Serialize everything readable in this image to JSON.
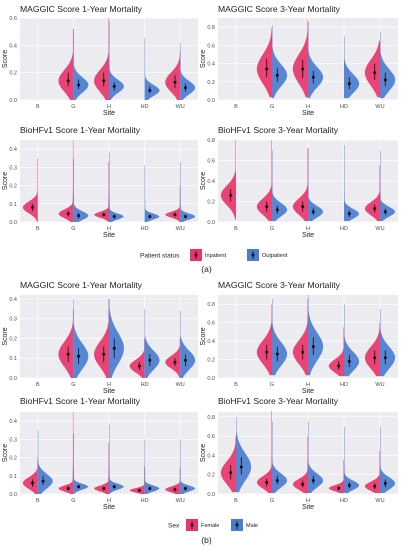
{
  "colors": {
    "panel_bg": "#EBEBF0",
    "grid": "#ffffff",
    "pink": "#E8356B",
    "blue": "#4A7DD1",
    "text": "#222222",
    "axis_text": "#4d4d4d"
  },
  "sections": [
    {
      "label": "(a)",
      "legend": {
        "title": "Patient status",
        "items": [
          {
            "label": "Inpatient",
            "color": "#E8356B"
          },
          {
            "label": "Outpatient",
            "color": "#4A7DD1"
          }
        ]
      },
      "charts": [
        {
          "title": "MAGGIC Score 1-Year Mortality",
          "xlabel": "Site",
          "ylabel": "Score"
        },
        {
          "title": "MAGGIC Score 3-Year Mortality",
          "xlabel": "Site",
          "ylabel": "Score"
        },
        {
          "title": "BioHFv1 Score 1-Year Mortality",
          "xlabel": "Site",
          "ylabel": "Score"
        },
        {
          "title": "BioHFv1 Score 3-Year Mortality",
          "xlabel": "Site",
          "ylabel": "Score"
        }
      ]
    },
    {
      "label": "(b)",
      "legend": {
        "title": "Sex",
        "items": [
          {
            "label": "Female",
            "color": "#E8356B"
          },
          {
            "label": "Male",
            "color": "#4A7DD1"
          }
        ]
      },
      "charts": [
        {
          "title": "MAGGIC Score 1-Year Mortality",
          "xlabel": "Site",
          "ylabel": "Score"
        },
        {
          "title": "MAGGIC Score 3-Year Mortality",
          "xlabel": "Site",
          "ylabel": "Score"
        },
        {
          "title": "BioHFv1 Score 1-Year Mortality",
          "xlabel": "Site",
          "ylabel": "Score"
        },
        {
          "title": "BioHFv1 Score 3-Year Mortality",
          "xlabel": "Site",
          "ylabel": "Score"
        }
      ]
    }
  ],
  "chart_data": [
    {
      "type": "violin",
      "title": "MAGGIC Score 1-Year Mortality",
      "xlabel": "Site",
      "ylabel": "Score",
      "categories": [
        "B",
        "G",
        "H",
        "HD",
        "WU"
      ],
      "ylim": [
        0,
        0.6
      ],
      "yticks": [
        0.0,
        0.2,
        0.4,
        0.6
      ],
      "series": [
        {
          "name": "Inpatient",
          "points": [
            null,
            {
              "median": 0.14,
              "lo": 0.1,
              "hi": 0.2,
              "max": 0.52,
              "min": 0.0
            },
            {
              "median": 0.14,
              "lo": 0.1,
              "hi": 0.2,
              "max": 0.6,
              "min": 0.0
            },
            null,
            {
              "median": 0.13,
              "lo": 0.09,
              "hi": 0.18,
              "max": 0.36,
              "min": 0.0
            }
          ]
        },
        {
          "name": "Outpatient",
          "points": [
            null,
            {
              "median": 0.11,
              "lo": 0.08,
              "hi": 0.15,
              "max": 0.52,
              "min": 0.0
            },
            {
              "median": 0.1,
              "lo": 0.07,
              "hi": 0.13,
              "max": 0.58,
              "min": 0.0
            },
            {
              "median": 0.07,
              "lo": 0.05,
              "hi": 0.1,
              "max": 0.45,
              "min": 0.0
            },
            {
              "median": 0.09,
              "lo": 0.06,
              "hi": 0.12,
              "max": 0.42,
              "min": 0.0
            }
          ]
        }
      ]
    },
    {
      "type": "violin",
      "title": "MAGGIC Score 3-Year Mortality",
      "xlabel": "Site",
      "ylabel": "Score",
      "categories": [
        "B",
        "G",
        "H",
        "HD",
        "WU"
      ],
      "ylim": [
        0,
        0.9
      ],
      "yticks": [
        0.0,
        0.2,
        0.4,
        0.6,
        0.8
      ],
      "series": [
        {
          "name": "Inpatient",
          "points": [
            null,
            {
              "median": 0.34,
              "lo": 0.25,
              "hi": 0.45,
              "max": 0.8,
              "min": 0.03
            },
            {
              "median": 0.34,
              "lo": 0.24,
              "hi": 0.44,
              "max": 0.88,
              "min": 0.03
            },
            null,
            {
              "median": 0.3,
              "lo": 0.22,
              "hi": 0.4,
              "max": 0.65,
              "min": 0.03
            }
          ]
        },
        {
          "name": "Outpatient",
          "points": [
            null,
            {
              "median": 0.27,
              "lo": 0.2,
              "hi": 0.35,
              "max": 0.82,
              "min": 0.02
            },
            {
              "median": 0.25,
              "lo": 0.18,
              "hi": 0.32,
              "max": 0.86,
              "min": 0.02
            },
            {
              "median": 0.18,
              "lo": 0.12,
              "hi": 0.25,
              "max": 0.7,
              "min": 0.02
            },
            {
              "median": 0.22,
              "lo": 0.15,
              "hi": 0.3,
              "max": 0.75,
              "min": 0.02
            }
          ]
        }
      ]
    },
    {
      "type": "violin",
      "title": "BioHFv1 Score 1-Year Mortality",
      "xlabel": "Site",
      "ylabel": "Score",
      "categories": [
        "B",
        "G",
        "H",
        "HD",
        "WU"
      ],
      "ylim": [
        0,
        0.45
      ],
      "yticks": [
        0.0,
        0.1,
        0.2,
        0.3,
        0.4
      ],
      "series": [
        {
          "name": "Inpatient",
          "points": [
            {
              "median": 0.08,
              "lo": 0.06,
              "hi": 0.1,
              "max": 0.35,
              "min": 0.0
            },
            {
              "median": 0.045,
              "lo": 0.03,
              "hi": 0.06,
              "max": 0.45,
              "min": 0.0
            },
            {
              "median": 0.04,
              "lo": 0.03,
              "hi": 0.05,
              "max": 0.33,
              "min": 0.0
            },
            null,
            {
              "median": 0.04,
              "lo": 0.03,
              "hi": 0.05,
              "max": 0.2,
              "min": 0.0
            }
          ]
        },
        {
          "name": "Outpatient",
          "points": [
            null,
            {
              "median": 0.035,
              "lo": 0.02,
              "hi": 0.05,
              "max": 0.35,
              "min": 0.0
            },
            {
              "median": 0.03,
              "lo": 0.02,
              "hi": 0.04,
              "max": 0.38,
              "min": 0.0
            },
            {
              "median": 0.03,
              "lo": 0.02,
              "hi": 0.04,
              "max": 0.31,
              "min": 0.0
            },
            {
              "median": 0.03,
              "lo": 0.02,
              "hi": 0.04,
              "max": 0.33,
              "min": 0.0
            }
          ]
        }
      ]
    },
    {
      "type": "violin",
      "title": "BioHFv1 Score 3-Year Mortality",
      "xlabel": "Site",
      "ylabel": "Score",
      "categories": [
        "B",
        "G",
        "H",
        "HD",
        "WU"
      ],
      "ylim": [
        0,
        0.8
      ],
      "yticks": [
        0.0,
        0.2,
        0.4,
        0.6,
        0.8
      ],
      "series": [
        {
          "name": "Inpatient",
          "points": [
            {
              "median": 0.26,
              "lo": 0.2,
              "hi": 0.32,
              "max": 0.8,
              "min": 0.02
            },
            {
              "median": 0.15,
              "lo": 0.1,
              "hi": 0.2,
              "max": 0.8,
              "min": 0.01
            },
            {
              "median": 0.15,
              "lo": 0.1,
              "hi": 0.2,
              "max": 0.72,
              "min": 0.01
            },
            null,
            {
              "median": 0.13,
              "lo": 0.09,
              "hi": 0.17,
              "max": 0.55,
              "min": 0.01
            }
          ]
        },
        {
          "name": "Outpatient",
          "points": [
            null,
            {
              "median": 0.12,
              "lo": 0.08,
              "hi": 0.16,
              "max": 0.7,
              "min": 0.01
            },
            {
              "median": 0.1,
              "lo": 0.07,
              "hi": 0.14,
              "max": 0.72,
              "min": 0.01
            },
            {
              "median": 0.08,
              "lo": 0.05,
              "hi": 0.11,
              "max": 0.75,
              "min": 0.01
            },
            {
              "median": 0.1,
              "lo": 0.07,
              "hi": 0.13,
              "max": 0.7,
              "min": 0.01
            }
          ]
        }
      ]
    },
    {
      "type": "violin",
      "title": "MAGGIC Score 1-Year Mortality",
      "xlabel": "Site",
      "ylabel": "Score",
      "categories": [
        "B",
        "G",
        "H",
        "HD",
        "WU"
      ],
      "ylim": [
        0,
        0.42
      ],
      "yticks": [
        0.0,
        0.1,
        0.2,
        0.3,
        0.4
      ],
      "series": [
        {
          "name": "Female",
          "points": [
            null,
            {
              "median": 0.12,
              "lo": 0.08,
              "hi": 0.16,
              "max": 0.35,
              "min": 0.0
            },
            {
              "median": 0.12,
              "lo": 0.08,
              "hi": 0.16,
              "max": 0.4,
              "min": 0.0
            },
            {
              "median": 0.06,
              "lo": 0.04,
              "hi": 0.08,
              "max": 0.2,
              "min": 0.0
            },
            {
              "median": 0.08,
              "lo": 0.06,
              "hi": 0.1,
              "max": 0.2,
              "min": 0.0
            }
          ]
        },
        {
          "name": "Male",
          "points": [
            null,
            {
              "median": 0.11,
              "lo": 0.07,
              "hi": 0.15,
              "max": 0.4,
              "min": 0.0
            },
            {
              "median": 0.15,
              "lo": 0.1,
              "hi": 0.2,
              "max": 0.4,
              "min": 0.0
            },
            {
              "median": 0.09,
              "lo": 0.06,
              "hi": 0.12,
              "max": 0.35,
              "min": 0.0
            },
            {
              "median": 0.09,
              "lo": 0.06,
              "hi": 0.12,
              "max": 0.34,
              "min": 0.0
            }
          ]
        }
      ]
    },
    {
      "type": "violin",
      "title": "MAGGIC Score 3-Year Mortality",
      "xlabel": "Site",
      "ylabel": "Score",
      "categories": [
        "B",
        "G",
        "H",
        "HD",
        "WU"
      ],
      "ylim": [
        0,
        0.9
      ],
      "yticks": [
        0.0,
        0.2,
        0.4,
        0.6,
        0.8
      ],
      "series": [
        {
          "name": "Female",
          "points": [
            null,
            {
              "median": 0.28,
              "lo": 0.2,
              "hi": 0.36,
              "max": 0.8,
              "min": 0.03
            },
            {
              "median": 0.28,
              "lo": 0.2,
              "hi": 0.36,
              "max": 0.86,
              "min": 0.03
            },
            {
              "median": 0.13,
              "lo": 0.09,
              "hi": 0.18,
              "max": 0.55,
              "min": 0.02
            },
            {
              "median": 0.22,
              "lo": 0.15,
              "hi": 0.3,
              "max": 0.6,
              "min": 0.02
            }
          ]
        },
        {
          "name": "Male",
          "points": [
            null,
            {
              "median": 0.26,
              "lo": 0.18,
              "hi": 0.34,
              "max": 0.86,
              "min": 0.03
            },
            {
              "median": 0.34,
              "lo": 0.25,
              "hi": 0.44,
              "max": 0.9,
              "min": 0.03
            },
            {
              "median": 0.18,
              "lo": 0.12,
              "hi": 0.25,
              "max": 0.8,
              "min": 0.02
            },
            {
              "median": 0.22,
              "lo": 0.15,
              "hi": 0.3,
              "max": 0.75,
              "min": 0.02
            }
          ]
        }
      ]
    },
    {
      "type": "violin",
      "title": "BioHFv1 Score 1-Year Mortality",
      "xlabel": "Site",
      "ylabel": "Score",
      "categories": [
        "B",
        "G",
        "H",
        "HD",
        "WU"
      ],
      "ylim": [
        0,
        0.45
      ],
      "yticks": [
        0.0,
        0.1,
        0.2,
        0.3,
        0.4
      ],
      "series": [
        {
          "name": "Female",
          "points": [
            {
              "median": 0.06,
              "lo": 0.04,
              "hi": 0.08,
              "max": 0.2,
              "min": 0.0
            },
            {
              "median": 0.03,
              "lo": 0.02,
              "hi": 0.04,
              "max": 0.45,
              "min": 0.0
            },
            {
              "median": 0.03,
              "lo": 0.02,
              "hi": 0.04,
              "max": 0.28,
              "min": 0.0
            },
            {
              "median": 0.02,
              "lo": 0.015,
              "hi": 0.03,
              "max": 0.15,
              "min": 0.0
            },
            {
              "median": 0.025,
              "lo": 0.015,
              "hi": 0.035,
              "max": 0.15,
              "min": 0.0
            }
          ]
        },
        {
          "name": "Male",
          "points": [
            {
              "median": 0.07,
              "lo": 0.05,
              "hi": 0.1,
              "max": 0.35,
              "min": 0.0
            },
            {
              "median": 0.04,
              "lo": 0.03,
              "hi": 0.05,
              "max": 0.33,
              "min": 0.0
            },
            {
              "median": 0.04,
              "lo": 0.03,
              "hi": 0.05,
              "max": 0.38,
              "min": 0.0
            },
            {
              "median": 0.03,
              "lo": 0.02,
              "hi": 0.04,
              "max": 0.3,
              "min": 0.0
            },
            {
              "median": 0.03,
              "lo": 0.02,
              "hi": 0.04,
              "max": 0.3,
              "min": 0.0
            }
          ]
        }
      ]
    },
    {
      "type": "violin",
      "title": "BioHFv1 Score 3-Year Mortality",
      "xlabel": "Site",
      "ylabel": "Score",
      "categories": [
        "B",
        "G",
        "H",
        "HD",
        "WU"
      ],
      "ylim": [
        0,
        0.85
      ],
      "yticks": [
        0.0,
        0.2,
        0.4,
        0.6,
        0.8
      ],
      "series": [
        {
          "name": "Female",
          "points": [
            {
              "median": 0.22,
              "lo": 0.15,
              "hi": 0.3,
              "max": 0.6,
              "min": 0.02
            },
            {
              "median": 0.12,
              "lo": 0.08,
              "hi": 0.16,
              "max": 0.86,
              "min": 0.01
            },
            {
              "median": 0.1,
              "lo": 0.07,
              "hi": 0.14,
              "max": 0.6,
              "min": 0.01
            },
            {
              "median": 0.06,
              "lo": 0.04,
              "hi": 0.08,
              "max": 0.35,
              "min": 0.01
            },
            {
              "median": 0.08,
              "lo": 0.05,
              "hi": 0.11,
              "max": 0.45,
              "min": 0.01
            }
          ]
        },
        {
          "name": "Male",
          "points": [
            {
              "median": 0.28,
              "lo": 0.2,
              "hi": 0.38,
              "max": 0.8,
              "min": 0.02
            },
            {
              "median": 0.14,
              "lo": 0.1,
              "hi": 0.19,
              "max": 0.75,
              "min": 0.01
            },
            {
              "median": 0.14,
              "lo": 0.1,
              "hi": 0.19,
              "max": 0.75,
              "min": 0.01
            },
            {
              "median": 0.09,
              "lo": 0.06,
              "hi": 0.12,
              "max": 0.7,
              "min": 0.01
            },
            {
              "median": 0.11,
              "lo": 0.07,
              "hi": 0.15,
              "max": 0.7,
              "min": 0.01
            }
          ]
        }
      ]
    }
  ]
}
